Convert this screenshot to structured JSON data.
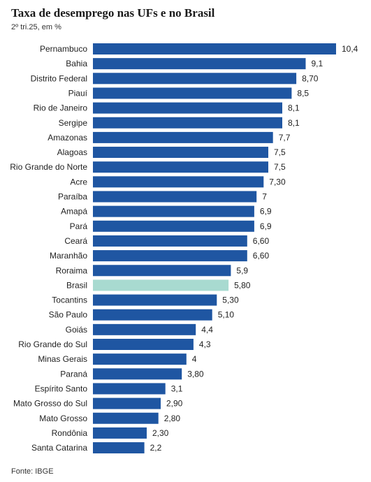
{
  "title": "Taxa de desemprego nas UFs e no Brasil",
  "subtitle": "2º tri.25, em %",
  "source": "Fonte: IBGE",
  "colors": {
    "bar": "#1f56a2",
    "highlight": "#a8dad0",
    "text": "#222222"
  },
  "chart_data": {
    "type": "bar",
    "orientation": "horizontal",
    "title": "Taxa de desemprego nas UFs e no Brasil",
    "subtitle": "2º tri.25, em %",
    "xlabel": "",
    "ylabel": "",
    "xlim": [
      0,
      10.4
    ],
    "grid": false,
    "highlight_category": "Brasil",
    "categories": [
      "Pernambuco",
      "Bahia",
      "Distrito Federal",
      "Piauí",
      "Rio de Janeiro",
      "Sergipe",
      "Amazonas",
      "Alagoas",
      "Rio Grande do Norte",
      "Acre",
      "Paraíba",
      "Amapá",
      "Pará",
      "Ceará",
      "Maranhão",
      "Roraima",
      "Brasil",
      "Tocantins",
      "São Paulo",
      "Goiás",
      "Rio Grande do Sul",
      "Minas Gerais",
      "Paraná",
      "Espírito Santo",
      "Mato Grosso do Sul",
      "Mato Grosso",
      "Rondônia",
      "Santa Catarina"
    ],
    "values": [
      10.4,
      9.1,
      8.7,
      8.5,
      8.1,
      8.1,
      7.7,
      7.5,
      7.5,
      7.3,
      7.0,
      6.9,
      6.9,
      6.6,
      6.6,
      5.9,
      5.8,
      5.3,
      5.1,
      4.4,
      4.3,
      4.0,
      3.8,
      3.1,
      2.9,
      2.8,
      2.3,
      2.2
    ],
    "value_labels": [
      "10,4",
      "9,1",
      "8,70",
      "8,5",
      "8,1",
      "8,1",
      "7,7",
      "7,5",
      "7,5",
      "7,30",
      "7",
      "6,9",
      "6,9",
      "6,60",
      "6,60",
      "5,9",
      "5,80",
      "5,30",
      "5,10",
      "4,4",
      "4,3",
      "4",
      "3,80",
      "3,1",
      "2,90",
      "2,80",
      "2,30",
      "2,2"
    ]
  }
}
